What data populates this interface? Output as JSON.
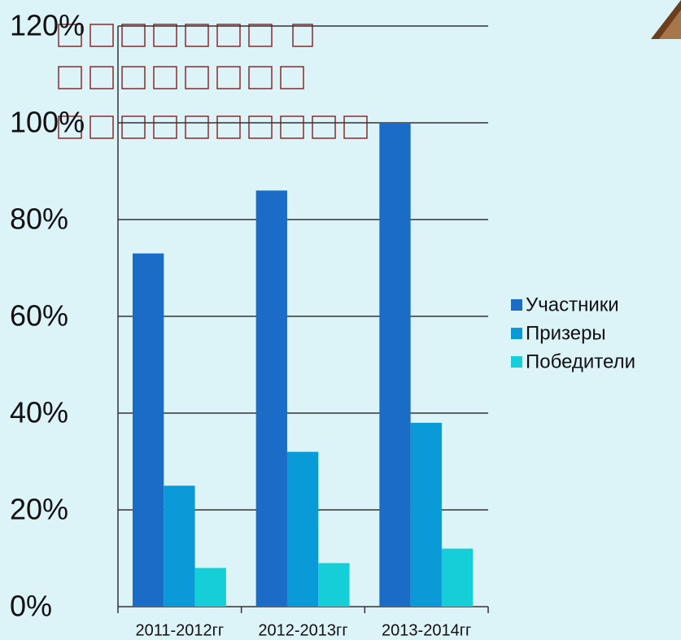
{
  "chart_data": {
    "type": "bar",
    "categories": [
      "2011-2012гг",
      "2012-2013гг",
      "2013-2014гг"
    ],
    "series": [
      {
        "name": "Участники",
        "color": "#1a6cc6",
        "values": [
          73,
          86,
          100
        ]
      },
      {
        "name": "Призеры",
        "color": "#0b9ad8",
        "values": [
          25,
          32,
          38
        ]
      },
      {
        "name": "Победители",
        "color": "#16ced8",
        "values": [
          8,
          9,
          12
        ]
      }
    ],
    "ylim": [
      0,
      120
    ],
    "yticks": [
      {
        "value": 0,
        "label": "0%"
      },
      {
        "value": 20,
        "label": "20%"
      },
      {
        "value": 40,
        "label": "40%"
      },
      {
        "value": 60,
        "label": "60%"
      },
      {
        "value": 80,
        "label": "80%"
      },
      {
        "value": 100,
        "label": "100%"
      },
      {
        "value": 120,
        "label": "120%"
      }
    ],
    "grid": true,
    "legend": "right"
  }
}
